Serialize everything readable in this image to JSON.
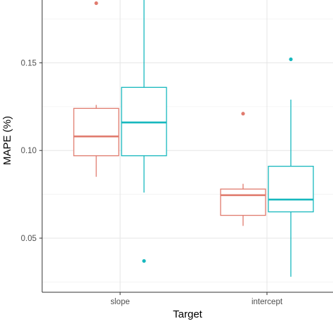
{
  "chart_data": {
    "type": "boxplot",
    "xlabel": "Target",
    "ylabel": "MAPE (%)",
    "categories": [
      "slope",
      "intercept"
    ],
    "y_ticks": [
      0.05,
      0.1,
      0.15
    ],
    "y_tick_labels": [
      "0.05",
      "0.10",
      "0.15"
    ],
    "ylim": [
      0.025,
      0.187
    ],
    "grid": true,
    "legend": "none",
    "series_colors": [
      "#e07b6e",
      "#17b8be"
    ],
    "boxes": [
      {
        "category": "slope",
        "color": "#e07b6e",
        "whisker_low": 0.085,
        "q1": 0.097,
        "median": 0.108,
        "q3": 0.124,
        "whisker_high": 0.126,
        "outliers": [
          0.184
        ]
      },
      {
        "category": "slope",
        "color": "#17b8be",
        "whisker_low": 0.076,
        "q1": 0.097,
        "median": 0.116,
        "q3": 0.136,
        "whisker_high": 0.19,
        "outliers": [
          0.037
        ]
      },
      {
        "category": "intercept",
        "color": "#e07b6e",
        "whisker_low": 0.057,
        "q1": 0.063,
        "median": 0.0745,
        "q3": 0.078,
        "whisker_high": 0.081,
        "outliers": [
          0.121
        ]
      },
      {
        "category": "intercept",
        "color": "#17b8be",
        "whisker_low": 0.028,
        "q1": 0.065,
        "median": 0.072,
        "q3": 0.091,
        "whisker_high": 0.129,
        "outliers": [
          0.152
        ]
      }
    ]
  }
}
